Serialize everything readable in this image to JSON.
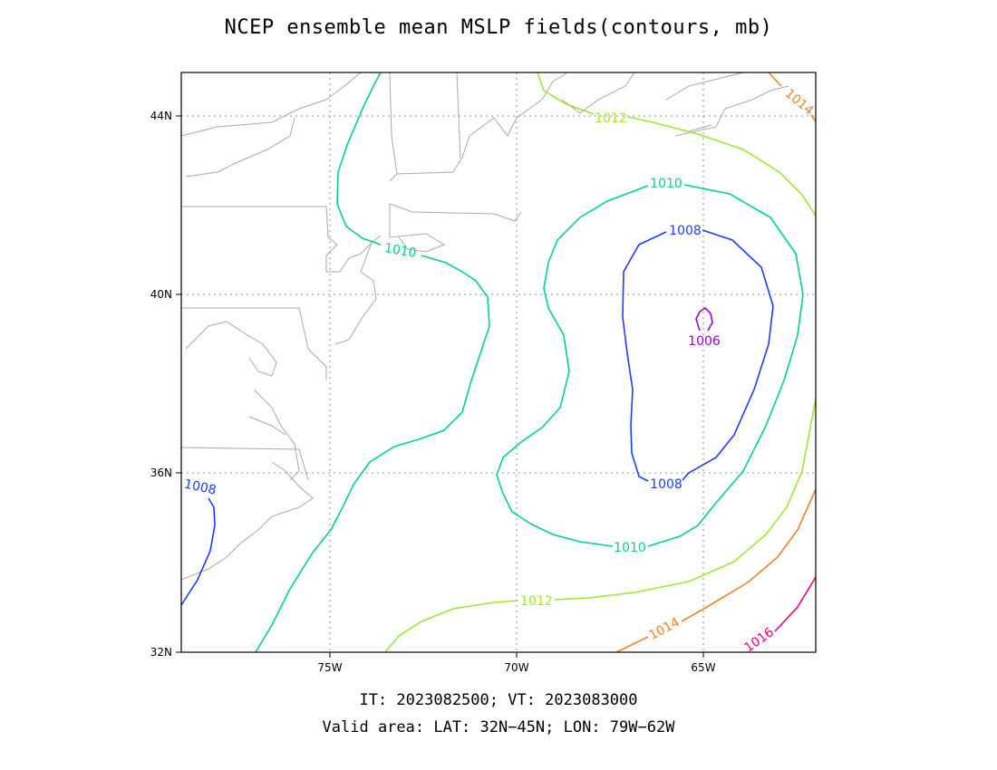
{
  "title": "NCEP ensemble mean MSLP fields(contours, mb)",
  "caption_line1": "IT: 2023082500; VT: 2023083000",
  "caption_line2": "Valid area: LAT: 32N−45N; LON: 79W−62W",
  "map": {
    "lat_range": [
      32,
      45
    ],
    "lon_range": [
      -79,
      -62
    ],
    "lat_ticks": [
      {
        "value": 44,
        "label": "44N"
      },
      {
        "value": 40,
        "label": "40N"
      },
      {
        "value": 36,
        "label": "36N"
      },
      {
        "value": 32,
        "label": "32N"
      }
    ],
    "lon_ticks": [
      {
        "value": -75,
        "label": "75W"
      },
      {
        "value": -70,
        "label": "70W"
      },
      {
        "value": -65,
        "label": "65W"
      }
    ],
    "grid": "dotted",
    "coastline_color": "#a9a9a9"
  },
  "contours": [
    {
      "level": "1006",
      "color": "#a000c8"
    },
    {
      "level": "1008",
      "color": "#1e3cff"
    },
    {
      "level": "1010",
      "color": "#00d28c"
    },
    {
      "level": "1012",
      "color": "#a0e632"
    },
    {
      "level": "1014",
      "color": "#f08228"
    },
    {
      "level": "1016",
      "color": "#f00082"
    }
  ]
}
